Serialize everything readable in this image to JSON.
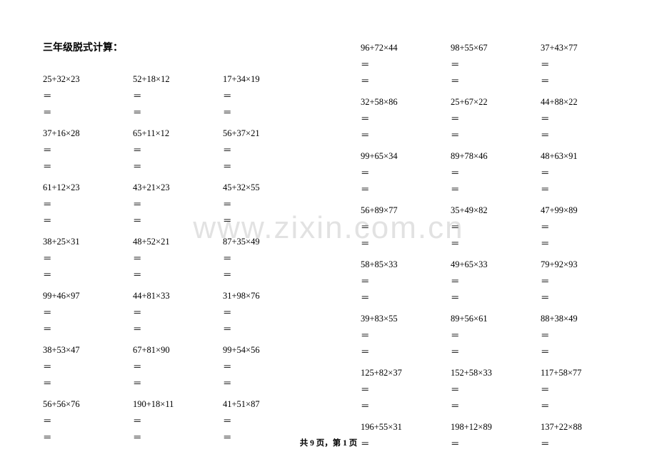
{
  "title": "三年级脱式计算：",
  "watermark": "www.zixin.com.cn",
  "footer": "共 9 页，第 1 页",
  "eq": "＝",
  "colors": {
    "text": "#000000",
    "bg": "#ffffff",
    "watermark": "rgba(150,150,150,0.28)"
  },
  "left": [
    [
      "25+32×23",
      "52+18×12",
      "17+34×19"
    ],
    [
      "37+16×28",
      "65+11×12",
      "56+37×21"
    ],
    [
      "61+12×23",
      "43+21×23",
      "45+32×55"
    ],
    [
      "38+25×31",
      "48+52×21",
      "87+35×49"
    ],
    [
      "99+46×97",
      "44+81×33",
      "31+98×76"
    ],
    [
      "38+53×47",
      "67+81×90",
      "99+54×56"
    ],
    [
      "56+56×76",
      "190+18×11",
      "41+51×87"
    ]
  ],
  "right": [
    [
      "96+72×44",
      "98+55×67",
      "37+43×77"
    ],
    [
      "32+58×86",
      "25+67×22",
      "44+88×22"
    ],
    [
      "99+65×34",
      "89+78×46",
      "48+63×91"
    ],
    [
      "56+89×77",
      "35+49×82",
      "47+99×89"
    ],
    [
      "58+85×33",
      "49+65×33",
      "79+92×93"
    ],
    [
      "39+83×55",
      "89+56×61",
      "88+38×49"
    ],
    [
      "125+82×37",
      "152+58×33",
      "117+58×77"
    ],
    [
      "196+55×31",
      "198+12×89",
      "137+22×88"
    ]
  ],
  "left_eq_rows": [
    2,
    2,
    2,
    2,
    2,
    2,
    2
  ],
  "right_eq_rows": [
    2,
    2,
    2,
    2,
    2,
    2,
    2,
    1
  ]
}
